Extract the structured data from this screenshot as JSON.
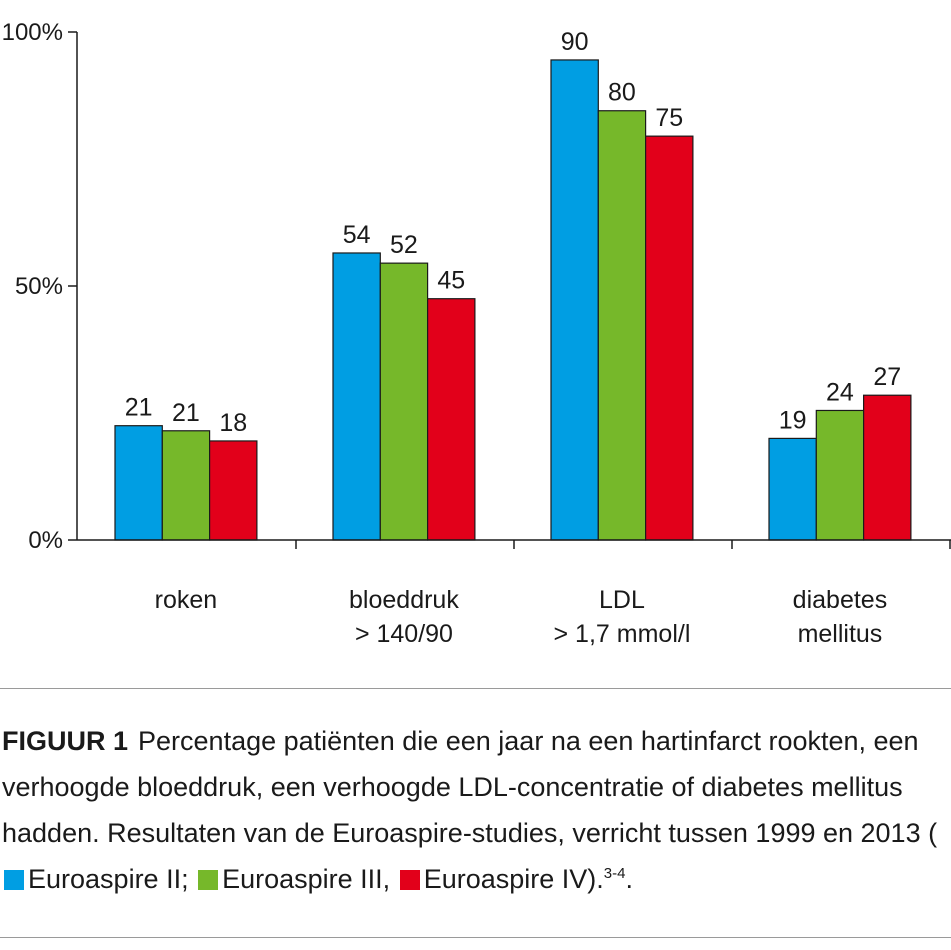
{
  "chart_data": {
    "type": "bar",
    "categories": [
      {
        "line1": "roken",
        "line2": ""
      },
      {
        "line1": "bloeddruk",
        "line2": "> 140/90"
      },
      {
        "line1": "LDL",
        "line2": "> 1,7 mmol/l"
      },
      {
        "line1": "diabetes",
        "line2": "mellitus"
      }
    ],
    "series": [
      {
        "name": "Euroaspire II",
        "color": "#009ee3",
        "values": [
          21,
          54,
          90,
          19
        ]
      },
      {
        "name": "Euroaspire III",
        "color": "#76b82a",
        "values": [
          21,
          52,
          80,
          24
        ]
      },
      {
        "name": "Euroaspire IV",
        "color": "#e2001a",
        "values": [
          18,
          45,
          75,
          27
        ]
      }
    ],
    "bar_heights_percent": [
      [
        22.5,
        56.5,
        94.5,
        20.0
      ],
      [
        21.5,
        54.5,
        84.5,
        25.5
      ],
      [
        19.5,
        47.5,
        79.5,
        28.5
      ]
    ],
    "y_ticks": [
      {
        "value": 0,
        "label": "0%"
      },
      {
        "value": 50,
        "label": "50%"
      },
      {
        "value": 100,
        "label": "100%"
      }
    ],
    "ylim": [
      0,
      100
    ],
    "title": "",
    "xlabel": "",
    "ylabel": ""
  },
  "caption": {
    "figure_label": "FIGUUR 1",
    "text": "Percentage patiënten die een jaar na een hartinfarct rookten, een verhoogde bloeddruk, een verhoogde LDL-concentratie of diabetes mellitus hadden. Resultaten van de Euroaspire-studies, verricht tussen 1999 en 2013",
    "open_paren": "(",
    "legend": [
      {
        "label": "Euroaspire II;",
        "color": "#009ee3"
      },
      {
        "label": "Euroaspire III,",
        "color": "#76b82a"
      },
      {
        "label": "Euroaspire IV",
        "color": "#e2001a"
      }
    ],
    "close_paren": ").",
    "reference": "3-4",
    "end": "."
  }
}
